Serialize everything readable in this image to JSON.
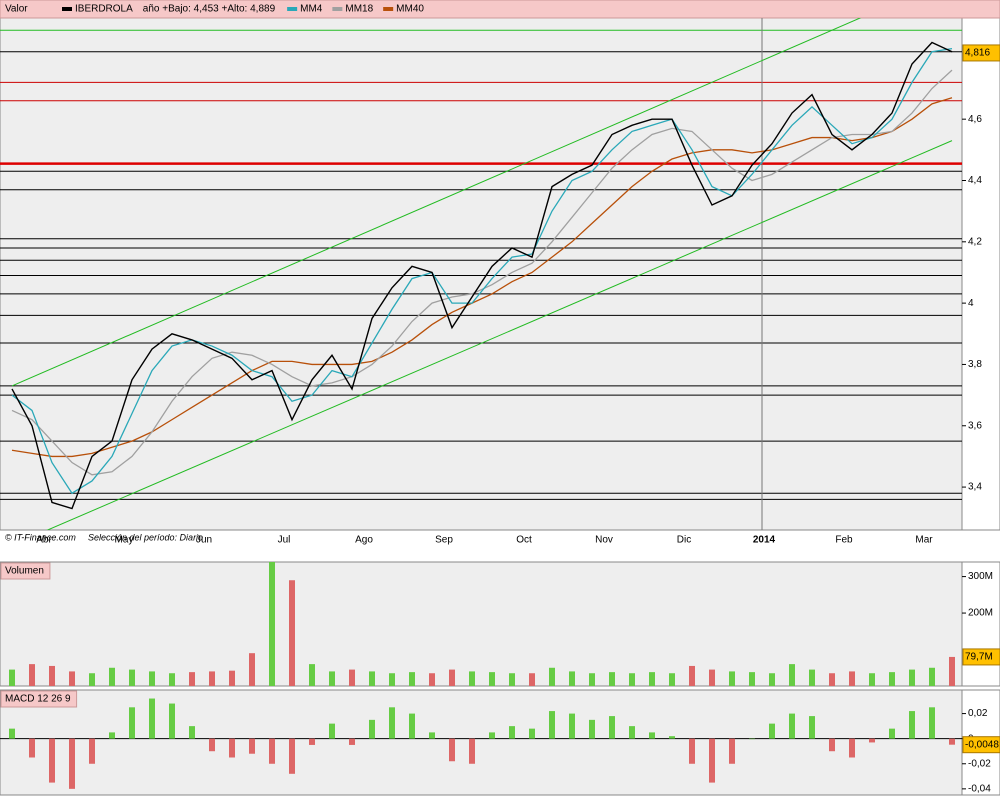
{
  "chart_data": [
    {
      "type": "line",
      "label": "Valor",
      "annotation": "año +Bajo: 4,453 +Alto: 4,889",
      "categories": [
        null,
        null,
        "Abr",
        null,
        null,
        null,
        "May",
        null,
        null,
        null,
        "Jun",
        null,
        null,
        null,
        "Jul",
        null,
        null,
        null,
        "Ago",
        null,
        null,
        null,
        "Sep",
        null,
        null,
        null,
        "Oct",
        null,
        null,
        null,
        "Nov",
        null,
        null,
        null,
        "Dic",
        null,
        null,
        null,
        "2014",
        null,
        null,
        null,
        "Feb",
        null,
        null,
        null,
        "Mar",
        null
      ],
      "series": [
        {
          "name": "IBERDROLA",
          "color": "#000000",
          "values": [
            3.72,
            3.6,
            3.35,
            3.33,
            3.5,
            3.55,
            3.75,
            3.85,
            3.9,
            3.88,
            3.85,
            3.82,
            3.75,
            3.78,
            3.62,
            3.75,
            3.83,
            3.72,
            3.95,
            4.05,
            4.12,
            4.1,
            3.92,
            4.02,
            4.12,
            4.18,
            4.15,
            4.38,
            4.42,
            4.45,
            4.55,
            4.58,
            4.6,
            4.6,
            4.45,
            4.32,
            4.35,
            4.45,
            4.52,
            4.62,
            4.68,
            4.55,
            4.5,
            4.55,
            4.62,
            4.78,
            4.85,
            4.82
          ]
        },
        {
          "name": "MM4",
          "color": "#2aa8b8",
          "values": [
            3.7,
            3.65,
            3.48,
            3.38,
            3.42,
            3.5,
            3.64,
            3.78,
            3.86,
            3.88,
            3.86,
            3.83,
            3.78,
            3.76,
            3.68,
            3.7,
            3.78,
            3.76,
            3.87,
            3.98,
            4.08,
            4.1,
            4.0,
            4.0,
            4.08,
            4.15,
            4.16,
            4.3,
            4.4,
            4.43,
            4.5,
            4.56,
            4.58,
            4.6,
            4.5,
            4.38,
            4.35,
            4.42,
            4.5,
            4.58,
            4.64,
            4.58,
            4.52,
            4.54,
            4.6,
            4.72,
            4.82,
            4.83
          ]
        },
        {
          "name": "MM18",
          "color": "#a0a0a0",
          "values": [
            3.65,
            3.62,
            3.55,
            3.48,
            3.44,
            3.45,
            3.5,
            3.58,
            3.68,
            3.76,
            3.82,
            3.84,
            3.83,
            3.8,
            3.76,
            3.73,
            3.74,
            3.76,
            3.8,
            3.86,
            3.94,
            4.0,
            4.02,
            4.03,
            4.06,
            4.1,
            4.13,
            4.2,
            4.28,
            4.36,
            4.44,
            4.5,
            4.55,
            4.57,
            4.56,
            4.5,
            4.44,
            4.4,
            4.42,
            4.46,
            4.5,
            4.54,
            4.55,
            4.55,
            4.56,
            4.62,
            4.7,
            4.76
          ]
        },
        {
          "name": "MM40",
          "color": "#b8500a",
          "values": [
            3.52,
            3.51,
            3.5,
            3.5,
            3.51,
            3.53,
            3.55,
            3.58,
            3.62,
            3.66,
            3.7,
            3.74,
            3.78,
            3.81,
            3.81,
            3.8,
            3.8,
            3.8,
            3.81,
            3.84,
            3.88,
            3.93,
            3.97,
            4.0,
            4.03,
            4.07,
            4.1,
            4.15,
            4.2,
            4.26,
            4.32,
            4.38,
            4.43,
            4.47,
            4.49,
            4.5,
            4.5,
            4.49,
            4.5,
            4.52,
            4.54,
            4.54,
            4.53,
            4.54,
            4.56,
            4.6,
            4.65,
            4.67
          ]
        }
      ],
      "levels": [
        {
          "value": 4.89,
          "color": "#22bb22"
        },
        {
          "value": 4.82,
          "color": "#000000"
        },
        {
          "value": 4.72,
          "color": "#cc0000"
        },
        {
          "value": 4.66,
          "color": "#cc0000"
        },
        {
          "value": 4.455,
          "color": "#dd0000",
          "thick": true
        },
        {
          "value": 4.43,
          "color": "#000000"
        },
        {
          "value": 4.37,
          "color": "#000000"
        },
        {
          "value": 4.21,
          "color": "#000000"
        },
        {
          "value": 4.18,
          "color": "#000000"
        },
        {
          "value": 4.14,
          "color": "#000000"
        },
        {
          "value": 4.09,
          "color": "#000000"
        },
        {
          "value": 4.03,
          "color": "#000000"
        },
        {
          "value": 3.96,
          "color": "#000000"
        },
        {
          "value": 3.87,
          "color": "#000000"
        },
        {
          "value": 3.73,
          "color": "#000000"
        },
        {
          "value": 3.7,
          "color": "#000000"
        },
        {
          "value": 3.55,
          "color": "#000000"
        },
        {
          "value": 3.38,
          "color": "#000000"
        },
        {
          "value": 3.36,
          "color": "#000000"
        }
      ],
      "channels": [
        {
          "color": "#22bb22",
          "values": [
            3.73,
            5.06
          ]
        },
        {
          "color": "#22bb22",
          "values": [
            3.21,
            4.53
          ]
        }
      ],
      "ylim": [
        3.26,
        4.93
      ],
      "yticks": [
        {
          "value": 3.4,
          "label": "3,4"
        },
        {
          "value": 3.6,
          "label": "3,6"
        },
        {
          "value": 3.8,
          "label": "3,8"
        },
        {
          "value": 4,
          "label": "4"
        },
        {
          "value": 4.2,
          "label": "4,2"
        },
        {
          "value": 4.4,
          "label": "4,4"
        },
        {
          "value": 4.6,
          "label": "4,6"
        }
      ],
      "last_value": 4.816,
      "last_label": "4,816",
      "bg_color": "#eeeeee",
      "footer": [
        "© IT-Finance.com",
        "Selección del período: Diario"
      ]
    },
    {
      "type": "bar",
      "label": "Volumen",
      "up_color": "#66cc44",
      "down_color": "#dd6666",
      "values": [
        45,
        60,
        55,
        40,
        35,
        50,
        45,
        40,
        35,
        38,
        40,
        42,
        90,
        340,
        290,
        60,
        40,
        45,
        40,
        35,
        38,
        35,
        45,
        40,
        38,
        35,
        35,
        50,
        40,
        35,
        38,
        35,
        38,
        35,
        55,
        45,
        40,
        38,
        35,
        60,
        45,
        35,
        40,
        35,
        38,
        45,
        50,
        79.7
      ],
      "ylim": [
        0,
        340
      ],
      "yticks": [
        {
          "value": 200,
          "label": "200M"
        },
        {
          "value": 300,
          "label": "300M"
        }
      ],
      "last_value": 79.7,
      "last_label": "79,7M"
    },
    {
      "type": "bar",
      "label": "MACD 12 26 9",
      "up_color": "#66cc44",
      "down_color": "#dd6666",
      "values": [
        0.008,
        -0.015,
        -0.035,
        -0.04,
        -0.02,
        0.005,
        0.025,
        0.032,
        0.028,
        0.01,
        -0.01,
        -0.015,
        -0.012,
        -0.02,
        -0.028,
        -0.005,
        0.012,
        -0.005,
        0.015,
        0.025,
        0.02,
        0.005,
        -0.018,
        -0.02,
        0.005,
        0.01,
        0.008,
        0.022,
        0.02,
        0.015,
        0.018,
        0.01,
        0.005,
        0.002,
        -0.02,
        -0.035,
        -0.02,
        0.0,
        0.012,
        0.02,
        0.018,
        -0.01,
        -0.015,
        -0.003,
        0.008,
        0.022,
        0.025,
        -0.0048
      ],
      "ylim": [
        -0.0449,
        0.0388
      ],
      "yticks": [
        {
          "value": 0.02,
          "label": "0,02"
        },
        0,
        {
          "value": -0.02,
          "label": "-0,02"
        },
        {
          "value": -0.04,
          "label": "-0,04"
        }
      ],
      "last_value": -0.0048,
      "last_label": "-0,0048"
    }
  ]
}
